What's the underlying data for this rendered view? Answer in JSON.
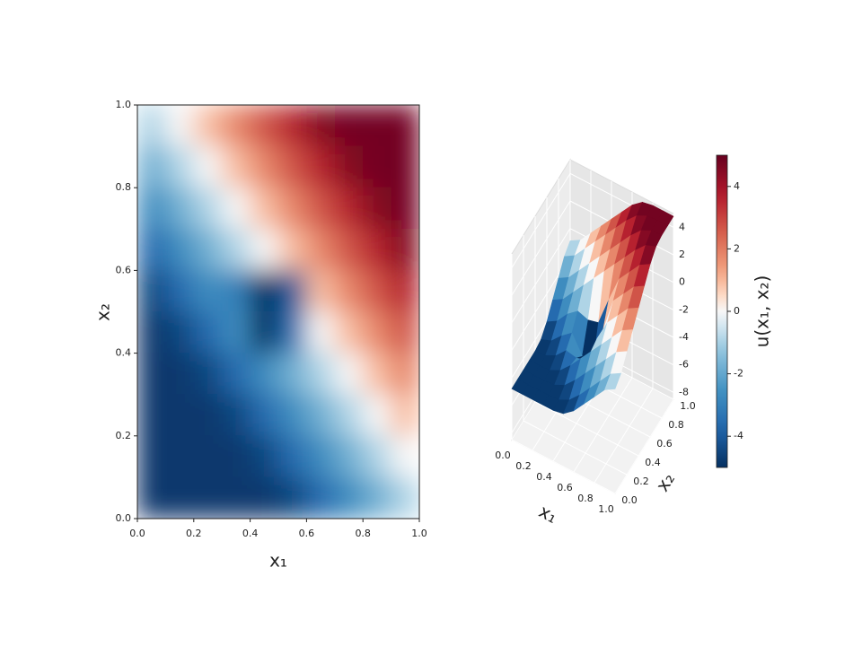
{
  "chart_data": [
    {
      "type": "heatmap",
      "xlabel": "x₁",
      "ylabel": "x₂",
      "x": [
        0.05,
        0.15,
        0.25,
        0.35,
        0.45,
        0.55,
        0.65,
        0.75,
        0.85,
        0.95
      ],
      "y": [
        0.95,
        0.85,
        0.75,
        0.65,
        0.55,
        0.45,
        0.35,
        0.25,
        0.15,
        0.05
      ],
      "z": [
        [
          -0.9,
          0,
          0.9,
          1.8,
          2.7,
          3.6,
          4.5,
          4.8,
          4.8,
          4.8
        ],
        [
          -1.8,
          -0.9,
          0,
          0.9,
          1.8,
          2.7,
          3.6,
          4.5,
          4.8,
          4.8
        ],
        [
          -2.7,
          -1.8,
          -0.9,
          0,
          0.9,
          1.8,
          2.7,
          3.6,
          4.5,
          4.8
        ],
        [
          -3.6,
          -2.7,
          -1.8,
          -0.9,
          0,
          0.9,
          1.8,
          2.7,
          3.6,
          4.5
        ],
        [
          -4.5,
          -3.6,
          -2.7,
          -3.0,
          -5.5,
          -4.0,
          0.9,
          1.8,
          2.7,
          3.6
        ],
        [
          -4.8,
          -4.5,
          -3.6,
          -2.7,
          -6.0,
          -3.5,
          0,
          0.9,
          1.8,
          2.7
        ],
        [
          -4.8,
          -4.8,
          -4.5,
          -3.6,
          -2.7,
          -1.8,
          -0.9,
          0,
          0.9,
          1.8
        ],
        [
          -4.8,
          -4.8,
          -4.8,
          -4.5,
          -3.6,
          -2.7,
          -1.8,
          -0.9,
          0,
          0.9
        ],
        [
          -4.8,
          -4.8,
          -4.8,
          -4.8,
          -4.5,
          -3.6,
          -2.7,
          -1.8,
          -0.9,
          0
        ],
        [
          -4.8,
          -4.8,
          -4.8,
          -4.8,
          -4.8,
          -4.5,
          -3.6,
          -2.7,
          -1.8,
          -0.9
        ]
      ],
      "xlim": [
        0,
        1
      ],
      "ylim": [
        0,
        1
      ],
      "xticks": [
        {
          "value": 0,
          "label": "0.0"
        },
        {
          "value": 0.2,
          "label": "0.2"
        },
        {
          "value": 0.4,
          "label": "0.4"
        },
        {
          "value": 0.6,
          "label": "0.6"
        },
        {
          "value": 0.8,
          "label": "0.8"
        },
        {
          "value": 1,
          "label": "1.0"
        }
      ],
      "yticks": [
        {
          "value": 0,
          "label": "0.0"
        },
        {
          "value": 0.2,
          "label": "0.2"
        },
        {
          "value": 0.4,
          "label": "0.4"
        },
        {
          "value": 0.6,
          "label": "0.6"
        },
        {
          "value": 0.8,
          "label": "0.8"
        },
        {
          "value": 1,
          "label": "1.0"
        }
      ],
      "colormap": "RdBu_r",
      "colorbar": {
        "label": "u(x₁, x₂)",
        "lim": [
          -5,
          5
        ],
        "ticks": [
          -4,
          -2,
          0,
          2,
          4
        ]
      }
    },
    {
      "type": "surface",
      "source": "chart_data.0",
      "xlabel": "x₁",
      "ylabel": "x₂",
      "xticks": [
        {
          "value": 0,
          "label": "0.0"
        },
        {
          "value": 0.2,
          "label": "0.2"
        },
        {
          "value": 0.4,
          "label": "0.4"
        },
        {
          "value": 0.6,
          "label": "0.6"
        },
        {
          "value": 0.8,
          "label": "0.8"
        },
        {
          "value": 1,
          "label": "1.0"
        }
      ],
      "yticks": [
        {
          "value": 0,
          "label": "0.0"
        },
        {
          "value": 0.2,
          "label": "0.2"
        },
        {
          "value": 0.4,
          "label": "0.4"
        },
        {
          "value": 0.6,
          "label": "0.6"
        },
        {
          "value": 0.8,
          "label": "0.8"
        },
        {
          "value": 1,
          "label": "1.0"
        }
      ],
      "zlim": [
        -8.5,
        5
      ],
      "zticks": [
        -8,
        -6,
        -4,
        -2,
        0,
        2,
        4
      ]
    }
  ]
}
